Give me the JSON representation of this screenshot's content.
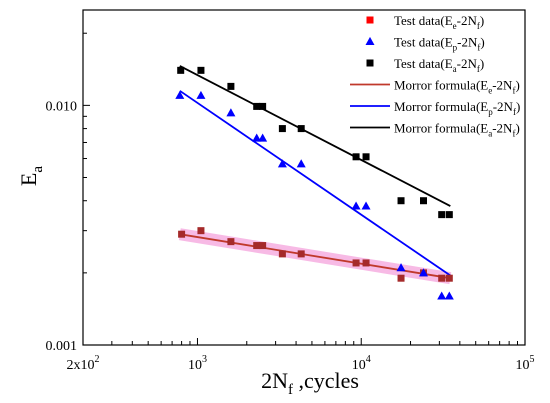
{
  "chart_data": {
    "type": "scatter",
    "x_scale": "log",
    "y_scale": "log",
    "xlim": [
      200,
      100000
    ],
    "ylim": [
      0.001,
      0.025
    ],
    "xlabel": {
      "main": "2N",
      "sub": "f",
      "rest": " ,cycles"
    },
    "ylabel": {
      "main": "E",
      "sub": "a"
    },
    "x_ticks": [
      {
        "value": 200,
        "base": "2x10",
        "exp": "2"
      },
      {
        "value": 1000,
        "base": "10",
        "exp": "3"
      },
      {
        "value": 10000,
        "base": "10",
        "exp": "4"
      },
      {
        "value": 100000,
        "base": "10",
        "exp": "5"
      }
    ],
    "y_ticks": [
      {
        "value": 0.001,
        "label": "0.001"
      },
      {
        "value": 0.01,
        "label": "0.010"
      }
    ],
    "grid": false,
    "legend_position": "top-right",
    "series": [
      {
        "name": {
          "pre": "Test data(E",
          "sub1": "e",
          "mid": "-2N",
          "sub2": "f",
          "post": ")"
        },
        "kind": "points",
        "marker": "square",
        "color": "#a52a2a",
        "legend_color": "#ff0000",
        "x": [
          800,
          1050,
          1600,
          2300,
          2500,
          3300,
          4300,
          9300,
          10700,
          17500,
          24000,
          31000,
          34500
        ],
        "y": [
          0.0029,
          0.003,
          0.0027,
          0.0026,
          0.0026,
          0.0024,
          0.0024,
          0.0022,
          0.0022,
          0.0019,
          0.002,
          0.0019,
          0.0019
        ]
      },
      {
        "name": {
          "pre": "Test data(E",
          "sub1": "p",
          "mid": "-2N",
          "sub2": "f",
          "post": ")"
        },
        "kind": "points",
        "marker": "triangle",
        "color": "#0000ff",
        "x": [
          780,
          1050,
          1600,
          2300,
          2500,
          3300,
          4300,
          9300,
          10700,
          17500,
          24000,
          31000,
          34500
        ],
        "y": [
          0.011,
          0.011,
          0.0093,
          0.0073,
          0.0073,
          0.0057,
          0.0057,
          0.0038,
          0.0038,
          0.0021,
          0.002,
          0.0016,
          0.0016
        ]
      },
      {
        "name": {
          "pre": "Test data(E",
          "sub1": "a",
          "mid": "-2N",
          "sub2": "f",
          "post": ")"
        },
        "kind": "points",
        "marker": "square",
        "color": "#000000",
        "x": [
          790,
          1050,
          1600,
          2300,
          2500,
          3300,
          4300,
          9300,
          10700,
          17500,
          24000,
          31000,
          34500
        ],
        "y": [
          0.014,
          0.014,
          0.012,
          0.0099,
          0.0099,
          0.008,
          0.008,
          0.0061,
          0.0061,
          0.004,
          0.004,
          0.0035,
          0.0035
        ]
      },
      {
        "name": {
          "pre": "Morror formula(E",
          "sub1": "e",
          "mid": "-2N",
          "sub2": "f",
          "post": ")"
        },
        "kind": "line",
        "color": "#c0392b",
        "x": [
          780,
          35000
        ],
        "y": [
          0.0029,
          0.0019
        ]
      },
      {
        "name": {
          "pre": "Morror formula(E",
          "sub1": "p",
          "mid": "-2N",
          "sub2": "f",
          "post": ")"
        },
        "kind": "line",
        "color": "#0000ff",
        "x": [
          780,
          35000
        ],
        "y": [
          0.0115,
          0.00195
        ]
      },
      {
        "name": {
          "pre": "Morror formula(E",
          "sub1": "a",
          "mid": "-2N",
          "sub2": "f",
          "post": ")"
        },
        "kind": "line",
        "color": "#000000",
        "x": [
          780,
          35000
        ],
        "y": [
          0.0146,
          0.0038
        ]
      }
    ],
    "highlight_band": {
      "color": "#f7b3e3",
      "x": [
        780,
        35000
      ],
      "y": [
        0.0029,
        0.0019
      ]
    }
  }
}
